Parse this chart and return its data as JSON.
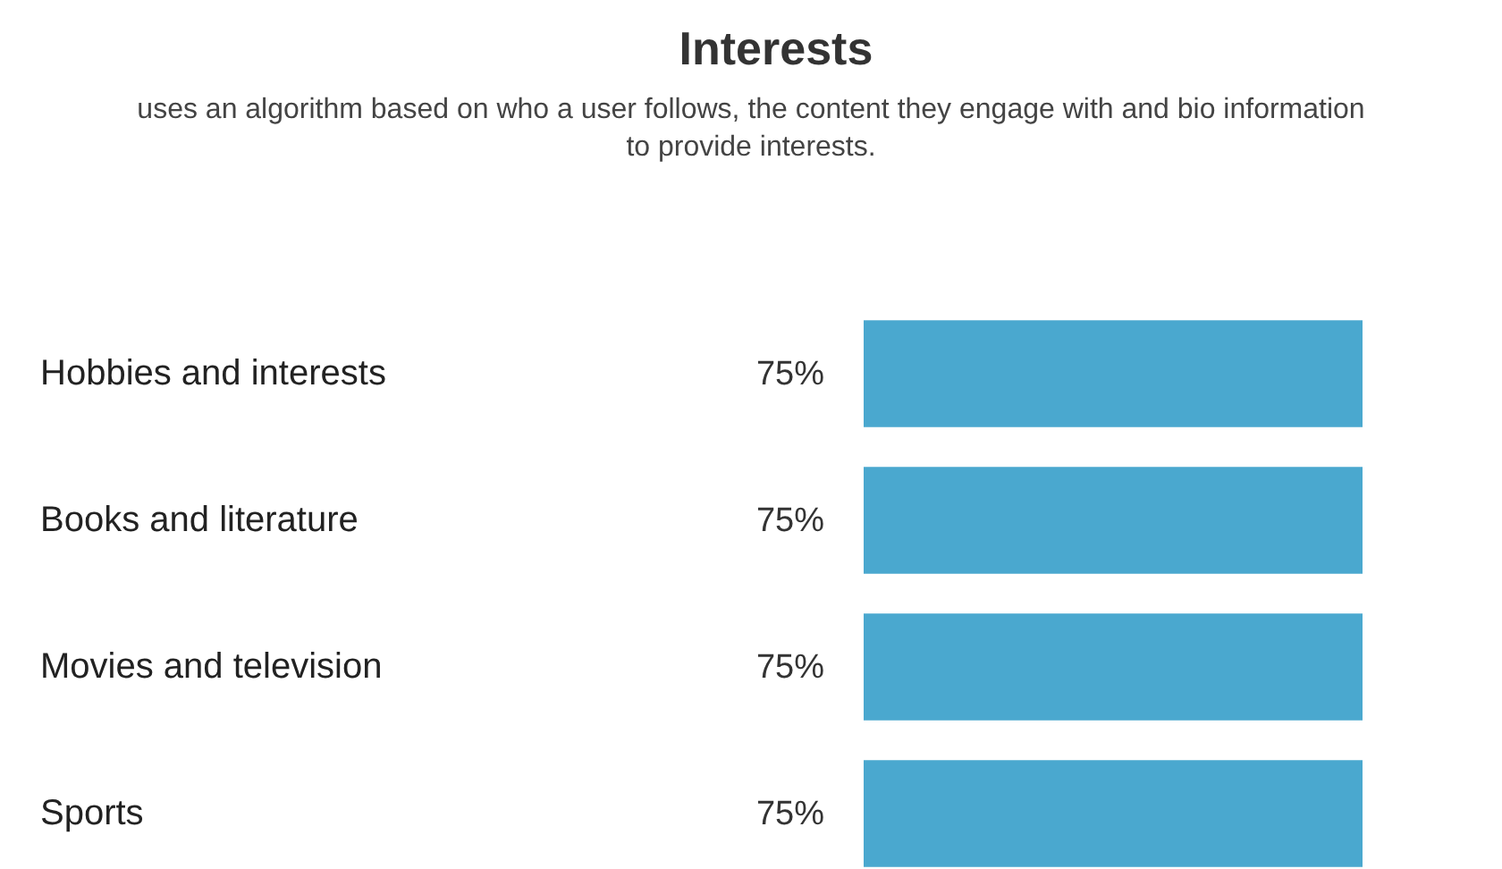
{
  "chart_data": {
    "type": "bar",
    "orientation": "horizontal",
    "title": "Interests",
    "subtitle": "uses an algorithm based on who a user follows, the content they engage with and bio information to provide interests.",
    "categories": [
      "Hobbies and interests",
      "Books and literature",
      "Movies and television",
      "Sports"
    ],
    "values": [
      75,
      75,
      75,
      75
    ],
    "value_labels": [
      "75%",
      "75%",
      "75%",
      "75%"
    ],
    "color": "#4aa8cf"
  }
}
